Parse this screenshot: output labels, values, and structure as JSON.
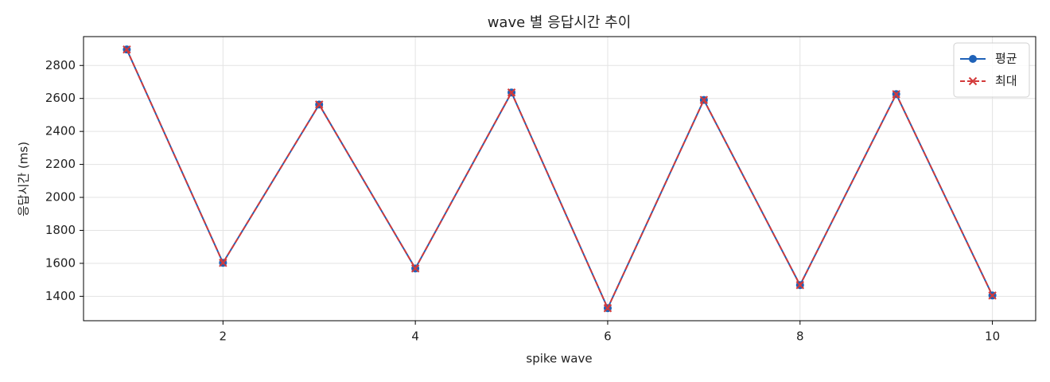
{
  "chart_data": {
    "type": "line",
    "title": "wave 별 응답시간 추이",
    "x_label": "spike wave",
    "y_label": "응답시간 (ms)",
    "x": [
      1,
      2,
      3,
      4,
      5,
      6,
      7,
      8,
      9,
      10
    ],
    "series": [
      {
        "name": "평균",
        "color": "#1f62b8",
        "marker": "o",
        "dash": false,
        "values": [
          2897,
          1603,
          2563,
          1569,
          2636,
          1328,
          2591,
          1468,
          2626,
          1405
        ]
      },
      {
        "name": "최대",
        "color": "#d33a3a",
        "marker": "x",
        "dash": true,
        "values": [
          2897,
          1603,
          2563,
          1569,
          2636,
          1328,
          2591,
          1468,
          2626,
          1405
        ]
      }
    ],
    "xlim": [
      0.55,
      10.45
    ],
    "xticks": [
      2,
      4,
      6,
      8,
      10
    ],
    "ylim": [
      1252,
      2975
    ],
    "yticks": [
      1400,
      1600,
      1800,
      2000,
      2200,
      2400,
      2600,
      2800
    ],
    "grid": true,
    "legend": "upper right"
  }
}
